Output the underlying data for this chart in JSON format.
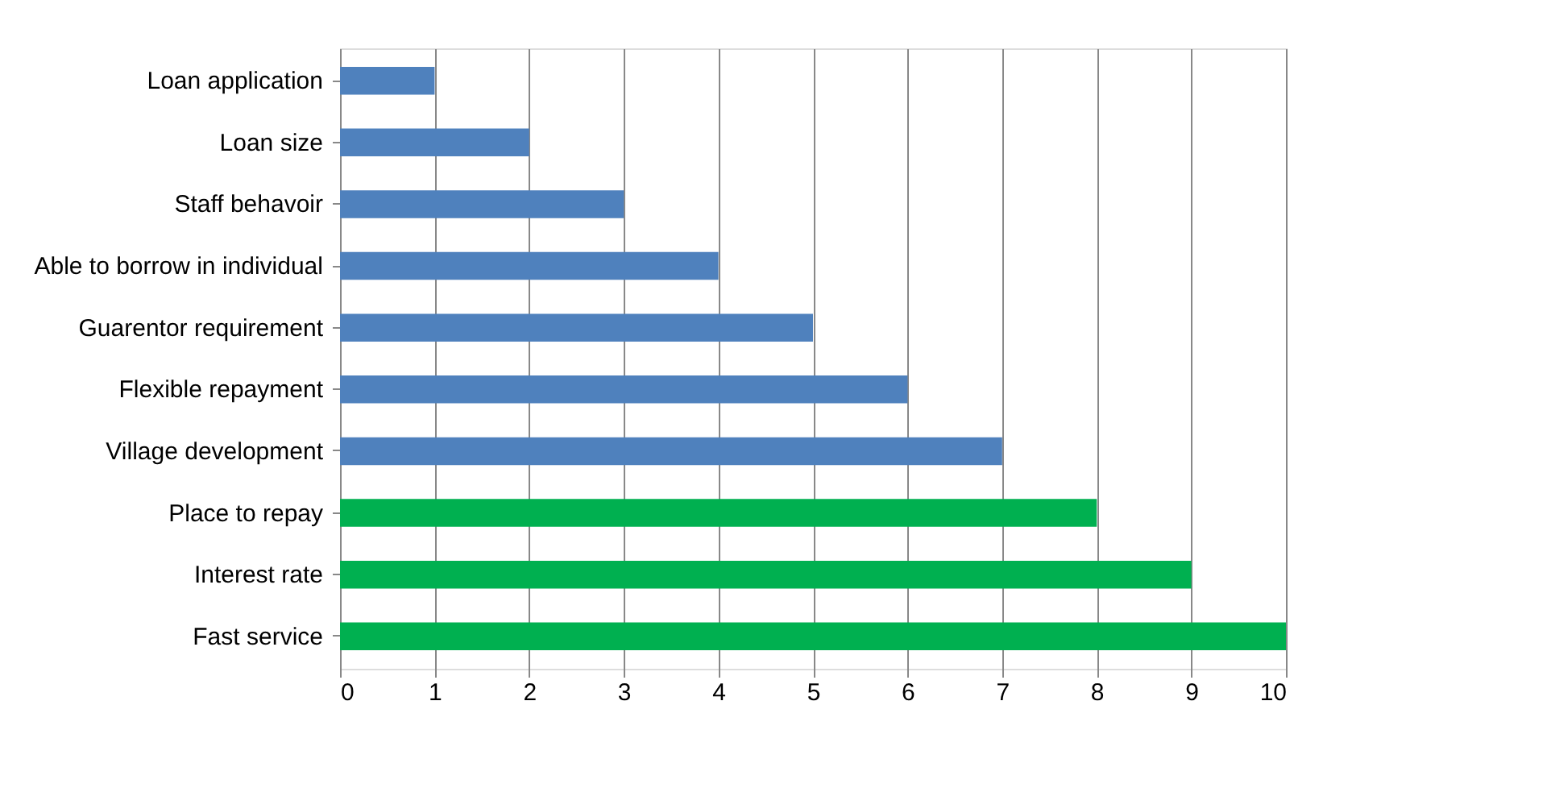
{
  "chart_data": {
    "type": "bar",
    "orientation": "horizontal",
    "categories": [
      "Loan application",
      "Loan size",
      "Staff behavoir",
      "Able to borrow in individual",
      "Guarentor requirement",
      "Flexible repayment",
      "Village development",
      "Place to repay",
      "Interest rate",
      "Fast service"
    ],
    "values": [
      1,
      2,
      3,
      4,
      5,
      6,
      7,
      8,
      9,
      10
    ],
    "colors": [
      "#4f81bd",
      "#4f81bd",
      "#4f81bd",
      "#4f81bd",
      "#4f81bd",
      "#4f81bd",
      "#4f81bd",
      "#00b050",
      "#00b050",
      "#00b050"
    ],
    "xlim": [
      0,
      10
    ],
    "xticks": [
      0,
      1,
      2,
      3,
      4,
      5,
      6,
      7,
      8,
      9,
      10
    ],
    "grid": "x"
  }
}
